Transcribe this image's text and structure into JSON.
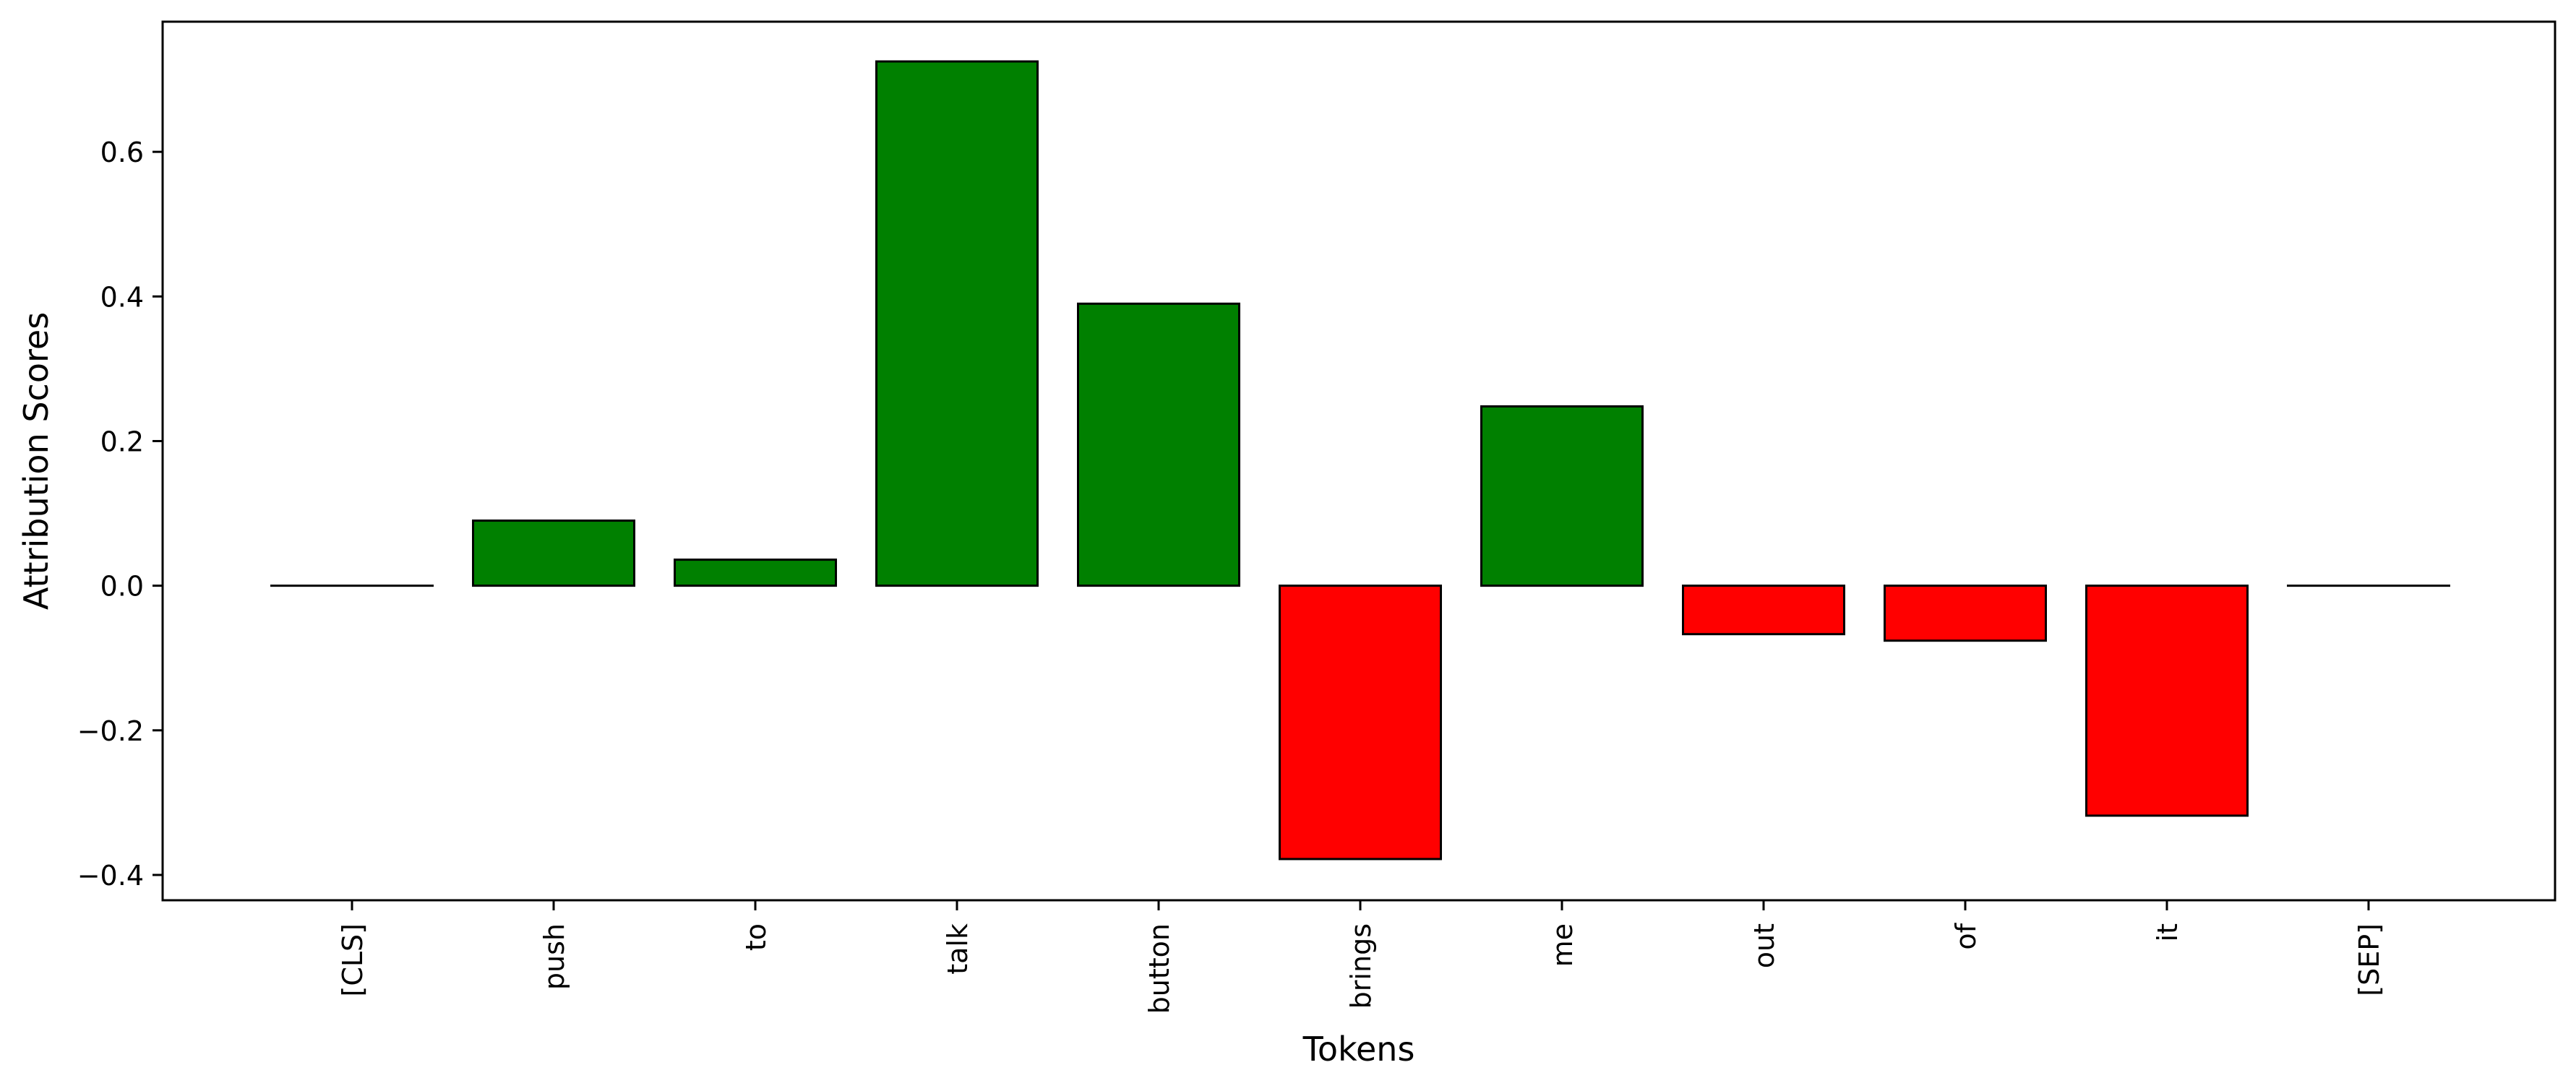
{
  "chart_data": {
    "type": "bar",
    "title": "",
    "xlabel": "Tokens",
    "ylabel": "Attribution Scores",
    "categories": [
      "[CLS]",
      "push",
      "to",
      "talk",
      "button",
      "brings",
      "me",
      "out",
      "of",
      "it",
      "[SEP]"
    ],
    "values": [
      0.0,
      0.09,
      0.036,
      0.725,
      0.39,
      -0.378,
      0.248,
      -0.067,
      -0.076,
      -0.318,
      0.0
    ],
    "ylim": [
      -0.435,
      0.78
    ],
    "yticks": [
      -0.4,
      -0.2,
      0.0,
      0.2,
      0.4,
      0.6
    ],
    "ytick_labels": [
      "−0.4",
      "−0.2",
      "0.0",
      "0.2",
      "0.4",
      "0.6"
    ],
    "colors": {
      "positive": "#008000",
      "negative": "#ff0000",
      "edge": "#000000"
    },
    "grid": false,
    "legend": "none"
  }
}
